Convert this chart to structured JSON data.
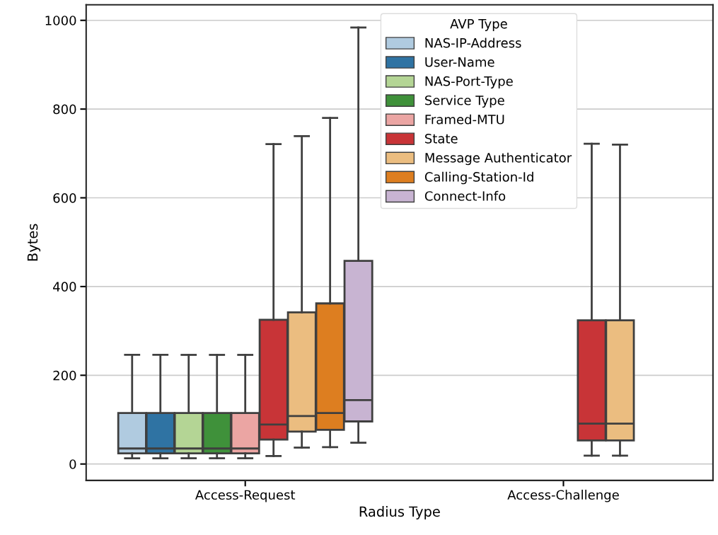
{
  "chart_data": {
    "type": "box",
    "xlabel": "Radius Type",
    "ylabel": "Bytes",
    "legend_title": "AVP Type",
    "categories": [
      "Access-Request",
      "Access-Challenge"
    ],
    "ylim": [
      -37,
      1035
    ],
    "yticks": [
      0,
      200,
      400,
      600,
      800,
      1000
    ],
    "grid": "y",
    "legend": "top",
    "series": [
      {
        "name": "NAS-IP-Address",
        "color": "#b0cbe0",
        "boxes": [
          {
            "low": 13,
            "q1": 24,
            "median": 35,
            "q3": 115,
            "high": 246
          },
          null
        ]
      },
      {
        "name": "User-Name",
        "color": "#2f73a3",
        "boxes": [
          {
            "low": 13,
            "q1": 24,
            "median": 35,
            "q3": 115,
            "high": 246
          },
          null
        ]
      },
      {
        "name": "NAS-Port-Type",
        "color": "#b4d595",
        "boxes": [
          {
            "low": 13,
            "q1": 24,
            "median": 35,
            "q3": 115,
            "high": 246
          },
          null
        ]
      },
      {
        "name": "Service Type",
        "color": "#3f913a",
        "boxes": [
          {
            "low": 13,
            "q1": 24,
            "median": 35,
            "q3": 115,
            "high": 246
          },
          null
        ]
      },
      {
        "name": "Framed-MTU",
        "color": "#eba5a3",
        "boxes": [
          {
            "low": 13,
            "q1": 24,
            "median": 35,
            "q3": 115,
            "high": 246
          },
          null
        ]
      },
      {
        "name": "State",
        "color": "#c83437",
        "boxes": [
          {
            "low": 18,
            "q1": 55,
            "median": 89,
            "q3": 325,
            "high": 721
          },
          {
            "low": 19,
            "q1": 53,
            "median": 91,
            "q3": 324,
            "high": 722
          }
        ]
      },
      {
        "name": "Message Authenticator",
        "color": "#ebbd80",
        "boxes": [
          {
            "low": 37,
            "q1": 73,
            "median": 108,
            "q3": 342,
            "high": 739
          },
          {
            "low": 19,
            "q1": 53,
            "median": 91,
            "q3": 324,
            "high": 720
          }
        ]
      },
      {
        "name": "Calling-Station-Id",
        "color": "#dd7e20",
        "boxes": [
          {
            "low": 38,
            "q1": 77,
            "median": 115,
            "q3": 362,
            "high": 780
          },
          null
        ]
      },
      {
        "name": "Connect-Info",
        "color": "#c8b4d2",
        "boxes": [
          {
            "low": 48,
            "q1": 96,
            "median": 144,
            "q3": 458,
            "high": 984
          },
          null
        ]
      }
    ]
  }
}
